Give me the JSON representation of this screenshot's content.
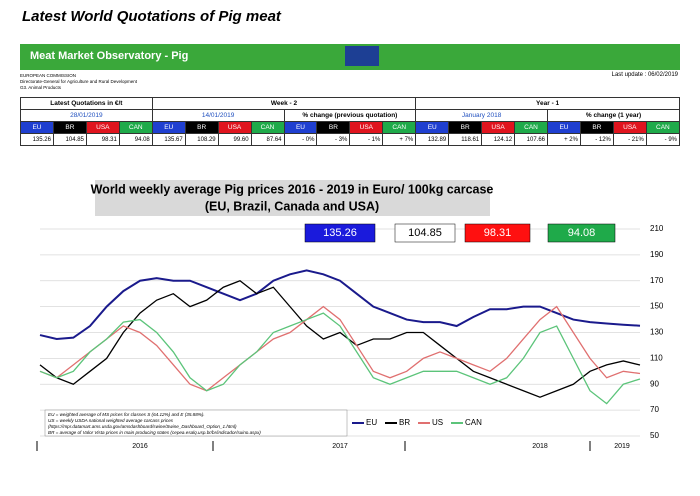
{
  "header": {
    "title": "Latest World Quotations of Pig meat",
    "banner": "Meat Market Observatory - Pig",
    "org": [
      "EUROPEAN COMMISSION",
      "Directorate-General for Agriculture and Rural Development",
      "G3. Animal Products"
    ],
    "update": "Last update : 06/02/2019"
  },
  "table": {
    "header": [
      "Latest Quotations in €/t",
      "Week - 2",
      "Year - 1"
    ],
    "subheader": [
      "28/01/2019",
      "14/01/2019",
      "% change (previous quotation)",
      "January 2018",
      "% change (1 year)"
    ],
    "columns": [
      "EU",
      "BR",
      "USA",
      "CAN"
    ],
    "rows": [
      [
        "135.26",
        "104.85",
        "98.31",
        "94.08",
        "135.67",
        "108.29",
        "99.60",
        "87.64",
        "- 0%",
        "- 3%",
        "- 1%",
        "+ 7%",
        "132.89",
        "118.61",
        "124.12",
        "107.66",
        "+ 2%",
        "- 12%",
        "- 21%",
        "- 9%"
      ]
    ]
  },
  "chart_data": {
    "type": "line",
    "title": "World weekly average Pig prices 2016 - 2019  in Euro/ 100kg carcase",
    "subtitle": "(EU, Brazil, Canada and USA)",
    "categories": [
      null,
      null,
      null,
      null,
      null,
      null,
      "2016",
      null,
      null,
      null,
      null,
      null,
      null,
      null,
      null,
      null,
      null,
      null,
      "2017",
      null,
      null,
      null,
      null,
      null,
      null,
      null,
      null,
      null,
      null,
      null,
      "2018",
      null,
      null,
      null,
      null,
      null,
      "2019"
    ],
    "series": [
      {
        "name": "EU",
        "color": "#1a1a8c",
        "values": [
          128,
          125,
          126,
          135,
          150,
          162,
          170,
          172,
          170,
          170,
          165,
          160,
          155,
          160,
          170,
          175,
          178,
          175,
          170,
          160,
          150,
          145,
          140,
          138,
          138,
          135,
          142,
          148,
          148,
          150,
          150,
          145,
          140,
          138,
          137,
          136,
          135.26
        ]
      },
      {
        "name": "BR",
        "color": "#000000",
        "values": [
          105,
          95,
          90,
          100,
          110,
          130,
          145,
          155,
          160,
          150,
          155,
          165,
          170,
          160,
          165,
          150,
          135,
          125,
          130,
          120,
          125,
          125,
          130,
          130,
          120,
          110,
          100,
          95,
          90,
          85,
          80,
          85,
          90,
          100,
          105,
          108,
          104.85
        ]
      },
      {
        "name": "US",
        "color": "#e07070",
        "values": [
          100,
          95,
          105,
          115,
          125,
          135,
          130,
          120,
          105,
          90,
          85,
          95,
          105,
          115,
          125,
          130,
          140,
          150,
          140,
          120,
          100,
          95,
          100,
          110,
          115,
          110,
          105,
          100,
          110,
          125,
          140,
          150,
          130,
          110,
          95,
          100,
          98.31
        ]
      },
      {
        "name": "CAN",
        "color": "#5cc47a",
        "values": [
          100,
          95,
          100,
          115,
          125,
          138,
          140,
          130,
          115,
          95,
          85,
          90,
          105,
          115,
          130,
          135,
          140,
          145,
          135,
          115,
          95,
          90,
          95,
          100,
          100,
          100,
          95,
          90,
          95,
          110,
          130,
          135,
          110,
          85,
          75,
          90,
          94.08
        ]
      }
    ],
    "ylim": [
      50,
      210
    ],
    "yticks": [
      50,
      70,
      90,
      110,
      130,
      150,
      170,
      190,
      210
    ],
    "grid": true,
    "notes": [
      "EU    = weighted average of MS prices for classes S (64.12%) and E (35.88%).",
      "US    = weekly USDA national weighted average carcass prices",
      "(https://mpr.datamart.ams.usda.gov/amsdashboard/swine/Swine_Dashboard_Option_1.html)",
      "BR    = average of Valor Vista prices in main producing states (cepea.esalq.usp.br/br/indicador/suino.aspx)"
    ]
  }
}
